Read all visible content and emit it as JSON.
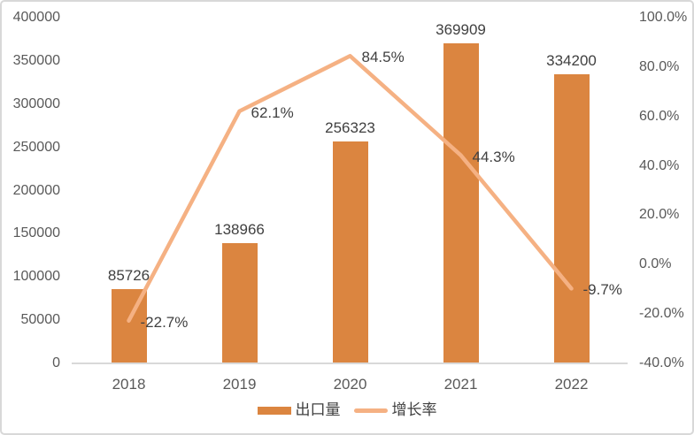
{
  "chart_data": {
    "type": "combo",
    "categories": [
      "2018",
      "2019",
      "2020",
      "2021",
      "2022"
    ],
    "series": [
      {
        "name": "出口量",
        "type": "bar",
        "axis": "left",
        "values": [
          85726,
          138966,
          256323,
          369909,
          334200
        ],
        "labels": [
          "85726",
          "138966",
          "256323",
          "369909",
          "334200"
        ],
        "color": "#db8540"
      },
      {
        "name": "增长率",
        "type": "line",
        "axis": "right",
        "values": [
          -22.7,
          62.1,
          84.5,
          44.3,
          -9.7
        ],
        "labels": [
          "-22.7%",
          "62.1%",
          "84.5%",
          "44.3%",
          "-9.7%"
        ],
        "color": "#f5b183"
      }
    ],
    "left_axis": {
      "min": 0,
      "max": 400000,
      "step": 50000,
      "tick_labels": [
        "0",
        "50000",
        "100000",
        "150000",
        "200000",
        "250000",
        "300000",
        "350000",
        "400000"
      ]
    },
    "right_axis": {
      "min": -40,
      "max": 100,
      "step": 20,
      "decimals": 1,
      "suffix": "%",
      "tick_labels": [
        "-40.0%",
        "-20.0%",
        "0.0%",
        "20.0%",
        "40.0%",
        "60.0%",
        "80.0%",
        "100.0%"
      ]
    },
    "title": "",
    "xlabel": "",
    "ylabel": "",
    "grid": false,
    "legend_position": "bottom"
  },
  "legend": {
    "bar_label": "出口量",
    "line_label": "增长率"
  },
  "colors": {
    "bar": "#db8540",
    "line": "#f5b183",
    "axis_text": "#595959",
    "data_label_text": "#404040",
    "axis_line": "#d9d9d9",
    "frame_border": "#d8d8d8"
  }
}
